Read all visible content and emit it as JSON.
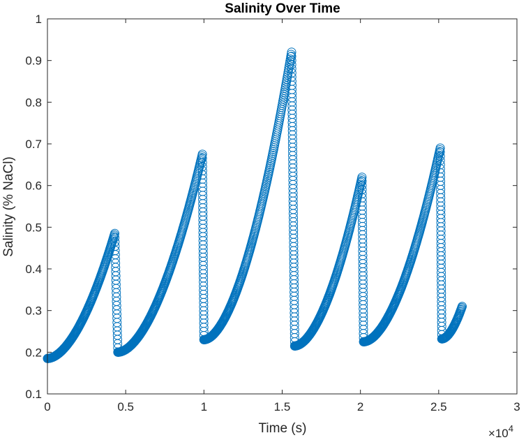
{
  "chart_data": {
    "type": "scatter",
    "title": "Salinity Over Time",
    "xlabel": "Time (s)",
    "ylabel": "Salinity (% NaCl)",
    "xlim": [
      0,
      30000
    ],
    "ylim": [
      0.1,
      1
    ],
    "x_scale_exponent_label": "×10",
    "x_scale_exponent": "4",
    "x_ticks": [
      {
        "value": 0,
        "label": "0"
      },
      {
        "value": 5000,
        "label": "0.5"
      },
      {
        "value": 10000,
        "label": "1"
      },
      {
        "value": 15000,
        "label": "1.5"
      },
      {
        "value": 20000,
        "label": "2"
      },
      {
        "value": 25000,
        "label": "2.5"
      },
      {
        "value": 30000,
        "label": "3"
      }
    ],
    "y_ticks": [
      {
        "value": 0.1,
        "label": "0.1"
      },
      {
        "value": 0.2,
        "label": "0.2"
      },
      {
        "value": 0.3,
        "label": "0.3"
      },
      {
        "value": 0.4,
        "label": "0.4"
      },
      {
        "value": 0.5,
        "label": "0.5"
      },
      {
        "value": 0.6,
        "label": "0.6"
      },
      {
        "value": 0.7,
        "label": "0.7"
      },
      {
        "value": 0.8,
        "label": "0.8"
      },
      {
        "value": 0.9,
        "label": "0.9"
      },
      {
        "value": 1,
        "label": "1"
      }
    ],
    "grid": false,
    "marker": "open-circle",
    "marker_color": "#0072BD",
    "series": [
      {
        "segments": [
          {
            "x_start": 0,
            "x_end": 4300,
            "y_start": 0.185,
            "y_end": 0.485,
            "drop_to": 0.2,
            "drop_end": 4500
          },
          {
            "x_start": 4500,
            "x_end": 9900,
            "y_start": 0.2,
            "y_end": 0.675,
            "drop_to": 0.23,
            "drop_end": 10000
          },
          {
            "x_start": 10000,
            "x_end": 15600,
            "y_start": 0.23,
            "y_end": 0.92,
            "drop_to": 0.215,
            "drop_end": 15800
          },
          {
            "x_start": 15800,
            "x_end": 20100,
            "y_start": 0.215,
            "y_end": 0.62,
            "drop_to": 0.225,
            "drop_end": 20200
          },
          {
            "x_start": 20200,
            "x_end": 25100,
            "y_start": 0.225,
            "y_end": 0.69,
            "drop_to": 0.232,
            "drop_end": 25200
          },
          {
            "x_start": 25200,
            "x_end": 26500,
            "y_start": 0.232,
            "y_end": 0.31
          }
        ]
      }
    ]
  }
}
